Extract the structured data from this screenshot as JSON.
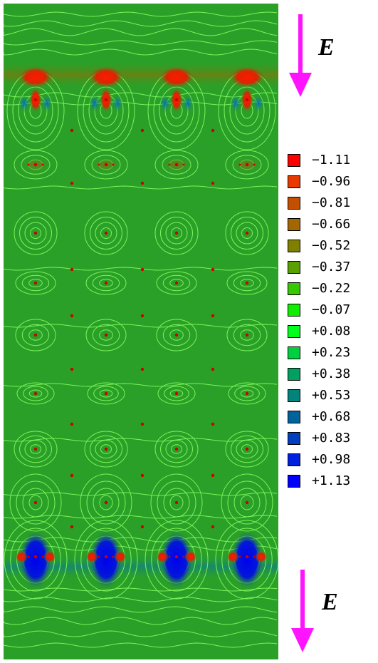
{
  "field_label": "E",
  "legend": [
    {
      "label": "−1.11",
      "color": "#ff0000"
    },
    {
      "label": "−0.96",
      "color": "#e83a00"
    },
    {
      "label": "−0.81",
      "color": "#c44f00"
    },
    {
      "label": "−0.66",
      "color": "#a46700"
    },
    {
      "label": "−0.52",
      "color": "#7f7f00"
    },
    {
      "label": "−0.37",
      "color": "#5aa000"
    },
    {
      "label": "−0.22",
      "color": "#36c800"
    },
    {
      "label": "−0.07",
      "color": "#10ee00"
    },
    {
      "label": "+0.08",
      "color": "#00ff1c"
    },
    {
      "label": "+0.23",
      "color": "#00d040"
    },
    {
      "label": "+0.38",
      "color": "#00a060"
    },
    {
      "label": "+0.53",
      "color": "#00847c"
    },
    {
      "label": "+0.68",
      "color": "#00649c"
    },
    {
      "label": "+0.83",
      "color": "#0040c0"
    },
    {
      "label": "+0.98",
      "color": "#0020e0"
    },
    {
      "label": "+1.13",
      "color": "#0000ff"
    }
  ],
  "colors": {
    "background_field": "#2aa028",
    "contour": "#7cf25a",
    "atom": "#cc0000",
    "arrow": "#ff14ff"
  }
}
